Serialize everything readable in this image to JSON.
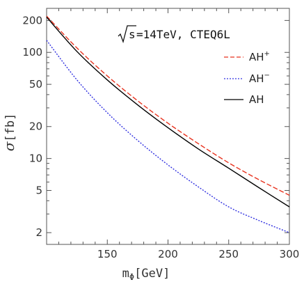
{
  "chart_data": {
    "type": "line",
    "title": "",
    "annotation": {
      "sqrt_symbol": "√",
      "sqrt_arg": "s",
      "rest": "=14TeV, CTEQ6L"
    },
    "xlabel": {
      "base": "m",
      "sub": "Φ",
      "unit": "[GeV]"
    },
    "ylabel": {
      "symbol": "σ",
      "unit": "[fb]"
    },
    "xlim": [
      100,
      300
    ],
    "ylim": [
      1.55,
      260
    ],
    "y_scale": "log",
    "grid": false,
    "legend_position": "top-right",
    "x_ticks": [
      150,
      200,
      250,
      300
    ],
    "y_ticks": [
      2,
      5,
      10,
      20,
      50,
      100,
      200
    ],
    "y_minor_ticks": [
      3,
      4,
      6,
      7,
      8,
      9,
      30,
      40,
      60,
      70,
      80,
      90
    ],
    "series": [
      {
        "name": "AH",
        "name_sup": "+",
        "color": "#e8321e",
        "dash": "dashed",
        "x": [
          100,
          125,
          150,
          175,
          200,
          225,
          250,
          275,
          300
        ],
        "values": [
          220,
          110,
          60,
          35,
          21.5,
          13.8,
          9.1,
          6.3,
          4.5
        ]
      },
      {
        "name": "AH",
        "name_sup": "−",
        "color": "#3030e0",
        "dash": "dotted",
        "x": [
          100,
          125,
          150,
          175,
          200,
          225,
          250,
          275,
          300
        ],
        "values": [
          130,
          55,
          27,
          14.8,
          8.7,
          5.4,
          3.5,
          2.6,
          2.0
        ]
      },
      {
        "name": "AH",
        "name_sup": "",
        "color": "#000000",
        "dash": "solid",
        "x": [
          100,
          125,
          150,
          175,
          200,
          225,
          250,
          275,
          300
        ],
        "values": [
          215,
          102,
          55,
          32,
          19.5,
          12.3,
          8.1,
          5.3,
          3.5
        ]
      }
    ]
  }
}
